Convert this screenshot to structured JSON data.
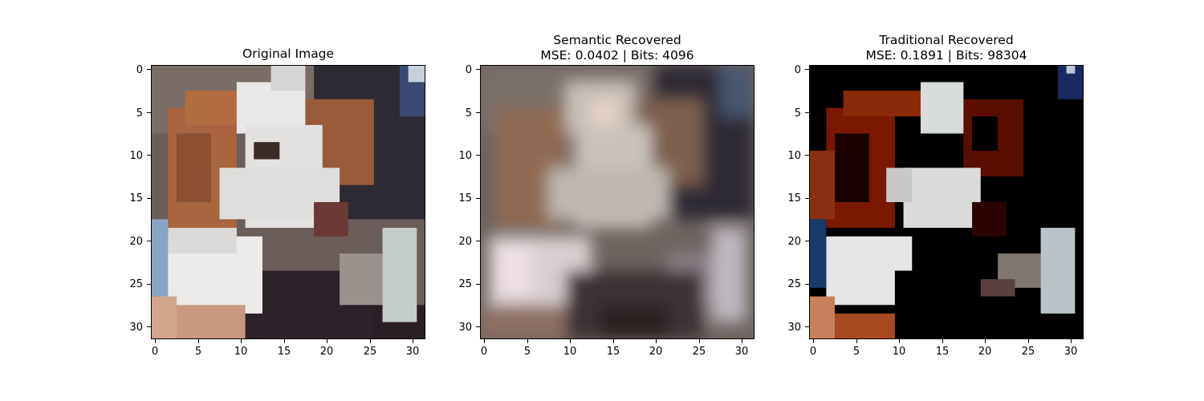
{
  "figure": {
    "panels": [
      {
        "id": "original",
        "title_lines": [
          "Original Image"
        ]
      },
      {
        "id": "semantic",
        "title_lines": [
          "Semantic Recovered",
          "MSE: 0.0402 | Bits: 4096"
        ]
      },
      {
        "id": "traditional",
        "title_lines": [
          "Traditional Recovered",
          "MSE: 0.1891 | Bits: 98304"
        ]
      }
    ],
    "axis": {
      "x_ticks": [
        "0",
        "5",
        "10",
        "15",
        "20",
        "25",
        "30"
      ],
      "y_ticks": [
        "0",
        "5",
        "10",
        "15",
        "20",
        "25",
        "30"
      ],
      "x_range": [
        -0.5,
        31.5
      ],
      "y_range": [
        31.5,
        -0.5
      ]
    },
    "image_content": "32x32 pixel image of a brown and white dog (beagle) lying down",
    "colors": {
      "dog_white": "#eaeae8",
      "dog_brown": "#a8653f",
      "background_dark": "#2a2530",
      "traditional_brown": "#8a1a00"
    }
  }
}
